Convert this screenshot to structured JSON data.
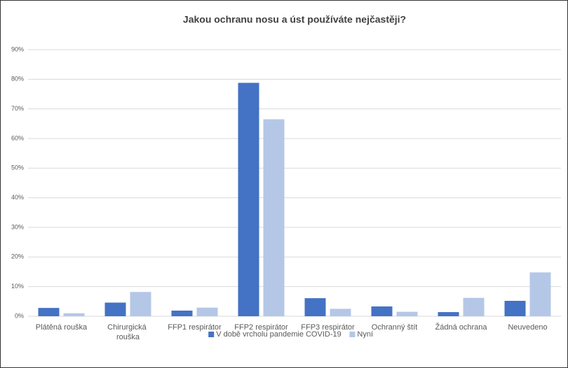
{
  "chart_data": {
    "type": "bar",
    "title": "Jakou ochranu nosu a úst používáte nejčastěji?",
    "categories": [
      "Plátěná rouška",
      "Chirurgická rouška",
      "FFP1 respirátor",
      "FFP2 respirátor",
      "FFP3 respirátor",
      "Ochranný štít",
      "Žádná ochrana",
      "Neuvedeno"
    ],
    "series": [
      {
        "name": "V době vrcholu pandemie COVID-19",
        "color": "#4472c4",
        "values": [
          2.8,
          4.6,
          1.9,
          78.8,
          6.1,
          3.3,
          1.4,
          5.2
        ]
      },
      {
        "name": "Nyní",
        "color": "#b4c7e7",
        "values": [
          1.0,
          8.2,
          2.9,
          66.5,
          2.5,
          1.5,
          6.2,
          14.8
        ]
      }
    ],
    "ylim": [
      0,
      90
    ],
    "yticks": [
      {
        "value": 0,
        "label": "0%"
      },
      {
        "value": 10,
        "label": "10%"
      },
      {
        "value": 20,
        "label": "20%"
      },
      {
        "value": 30,
        "label": "30%"
      },
      {
        "value": 40,
        "label": "40%"
      },
      {
        "value": 50,
        "label": "50%"
      },
      {
        "value": 60,
        "label": "60%"
      },
      {
        "value": 70,
        "label": "70%"
      },
      {
        "value": 80,
        "label": "80%"
      },
      {
        "value": 90,
        "label": "90%"
      }
    ],
    "grid": true,
    "legend": "bottom"
  }
}
